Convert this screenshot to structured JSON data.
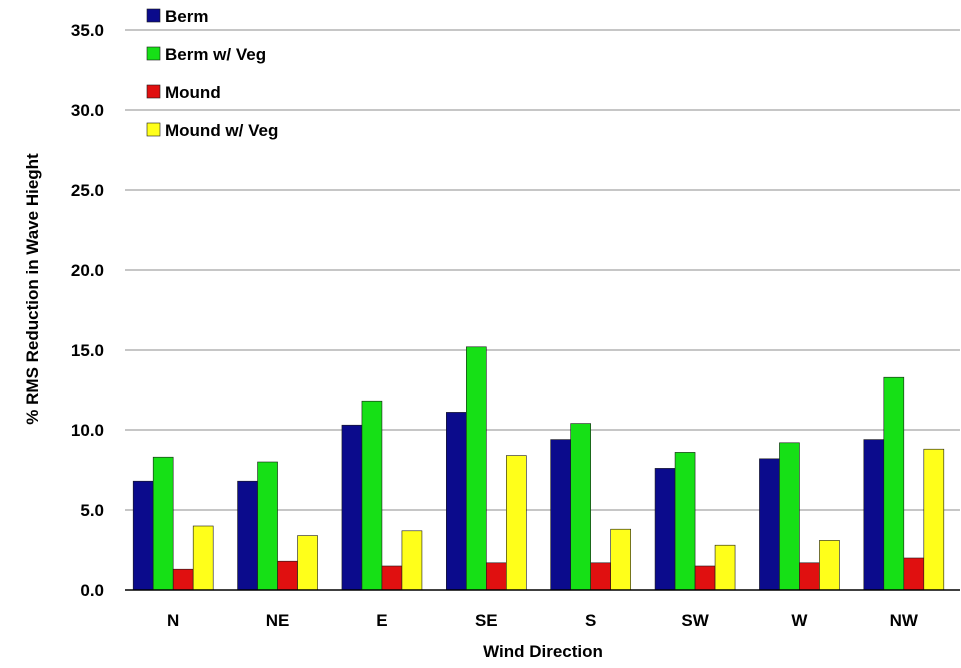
{
  "chart_data": {
    "type": "bar",
    "title": "",
    "xlabel": "Wind Direction",
    "ylabel": "% RMS Reduction in Wave Hieght",
    "ylim": [
      0,
      35
    ],
    "y_ticks": [
      "0.0",
      "5.0",
      "10.0",
      "15.0",
      "20.0",
      "25.0",
      "30.0",
      "35.0"
    ],
    "y_tick_values": [
      0,
      5,
      10,
      15,
      20,
      25,
      30,
      35
    ],
    "grid": true,
    "legend_position": "top-left",
    "categories": [
      "N",
      "NE",
      "E",
      "SE",
      "S",
      "SW",
      "W",
      "NW"
    ],
    "series": [
      {
        "name": "Berm",
        "color": "#0b0b8c",
        "values": [
          6.8,
          6.8,
          10.3,
          11.1,
          9.4,
          7.6,
          8.2,
          9.4
        ]
      },
      {
        "name": "Berm w/ Veg",
        "color": "#16e016",
        "values": [
          8.3,
          8.0,
          11.8,
          15.2,
          10.4,
          8.6,
          9.2,
          13.3
        ]
      },
      {
        "name": "Mound",
        "color": "#e01010",
        "values": [
          1.3,
          1.8,
          1.5,
          1.7,
          1.7,
          1.5,
          1.7,
          2.0
        ]
      },
      {
        "name": "Mound w/ Veg",
        "color": "#ffff1a",
        "values": [
          4.0,
          3.4,
          3.7,
          8.4,
          3.8,
          2.8,
          3.1,
          8.8
        ]
      }
    ]
  }
}
